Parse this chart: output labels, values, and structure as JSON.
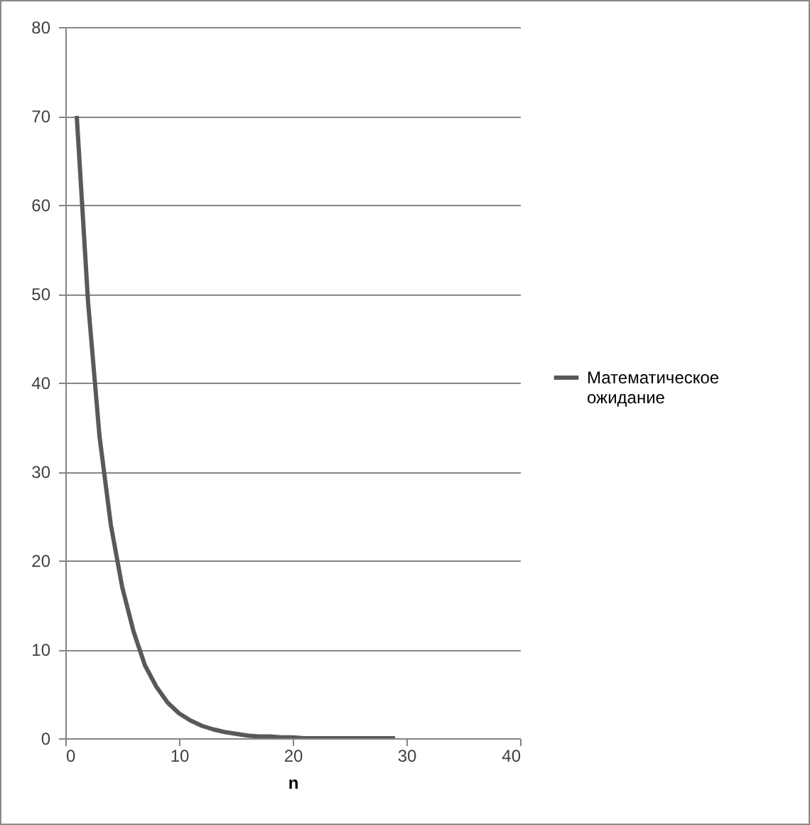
{
  "chart_data": {
    "type": "line",
    "xlabel": "n",
    "x": [
      1,
      2,
      3,
      4,
      5,
      6,
      7,
      8,
      9,
      10,
      11,
      12,
      13,
      14,
      15,
      16,
      17,
      18,
      19,
      20,
      21,
      22,
      23,
      24,
      25,
      26,
      27,
      28,
      29
    ],
    "series": [
      {
        "name": "Математическое ожидание",
        "color": "#595959",
        "values": [
          70,
          49,
          34,
          24,
          17,
          12,
          8.2,
          5.8,
          4,
          2.8,
          2,
          1.4,
          1,
          0.7,
          0.5,
          0.3,
          0.2,
          0.2,
          0.1,
          0.1,
          0,
          0,
          0,
          0,
          0,
          0,
          0,
          0,
          0
        ]
      }
    ],
    "xlim": [
      0,
      40
    ],
    "xticks": [
      0,
      10,
      20,
      30,
      40
    ],
    "ylim": [
      0,
      80
    ],
    "yticks": [
      0,
      10,
      20,
      30,
      40,
      50,
      60,
      70,
      80
    ],
    "grid": "y",
    "legend": "right",
    "marker": "none",
    "line_style": "solid"
  }
}
